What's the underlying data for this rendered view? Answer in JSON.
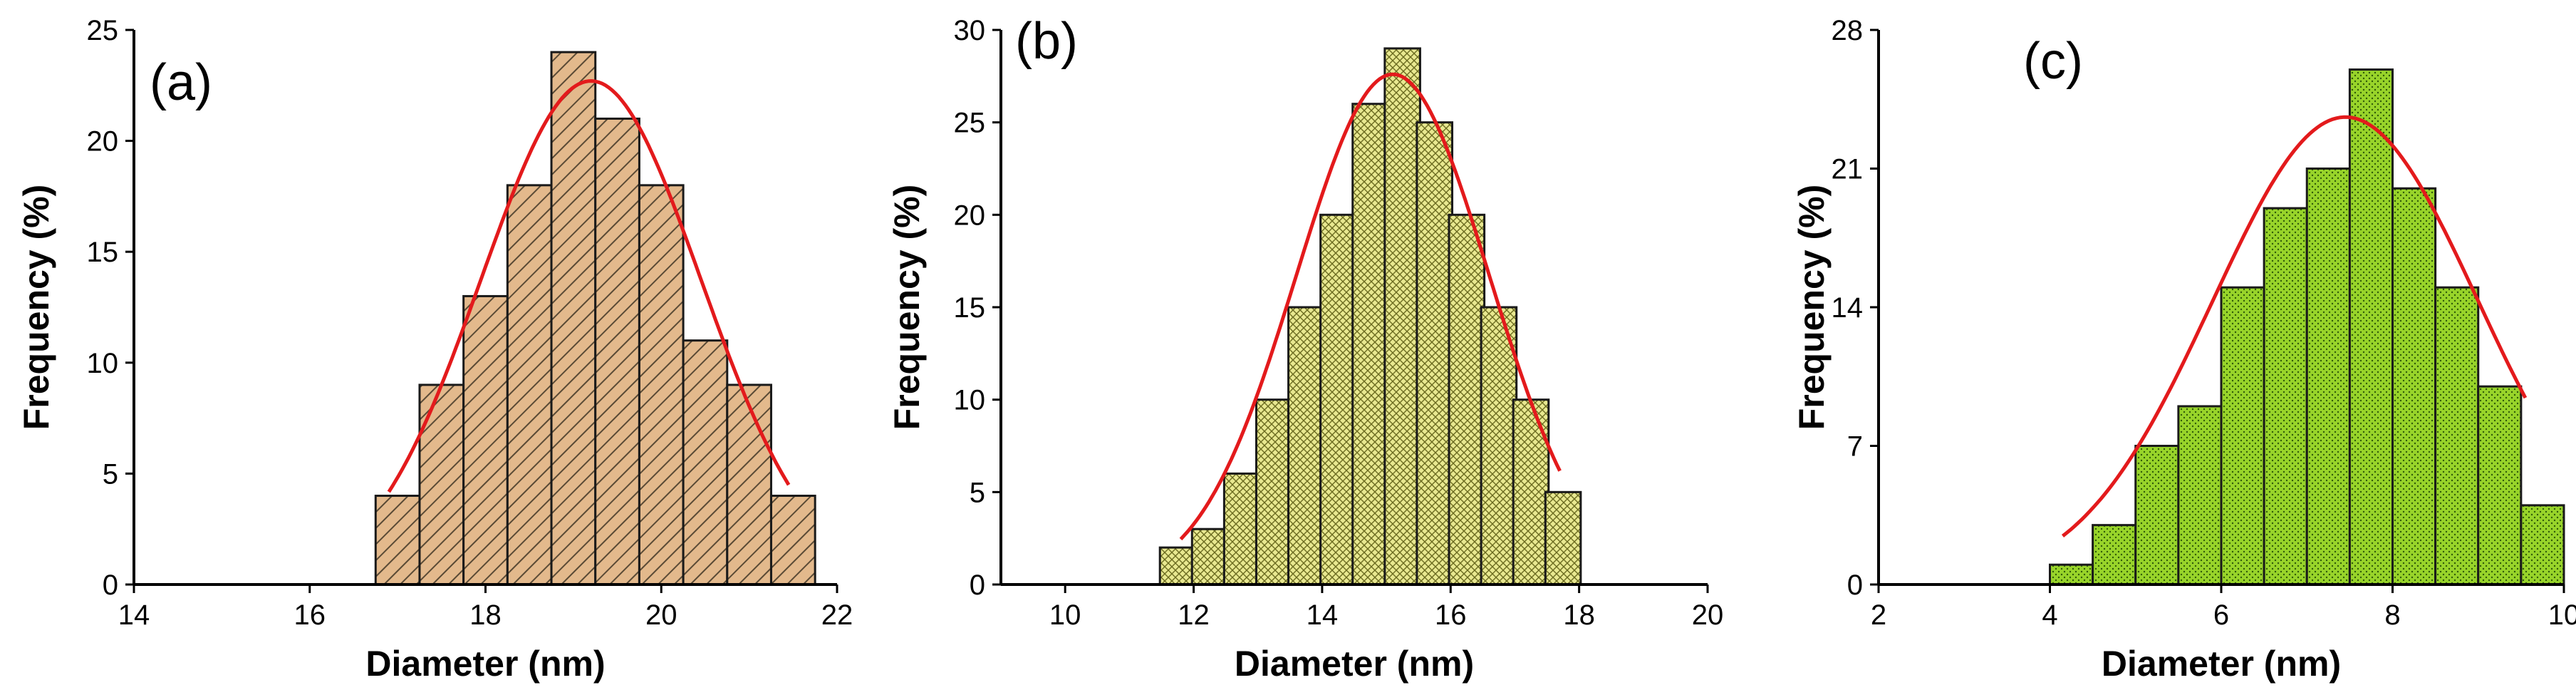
{
  "chart_data": [
    {
      "type": "bar",
      "panel_label": "(a)",
      "xlabel": "Diameter (nm)",
      "ylabel": "Frequency (%)",
      "xlim": [
        14,
        22
      ],
      "ylim": [
        0,
        25
      ],
      "xticks": [
        14,
        16,
        18,
        20,
        22
      ],
      "yticks": [
        0,
        5,
        10,
        15,
        20,
        25
      ],
      "bin_width": 0.5,
      "x": [
        17.0,
        17.5,
        18.0,
        18.5,
        19.0,
        19.5,
        20.0,
        20.5,
        21.0,
        21.5
      ],
      "values": [
        4,
        9,
        13,
        18,
        24,
        21,
        18,
        11,
        9,
        4
      ],
      "fit": {
        "type": "gaussian",
        "mean": 19.2,
        "sigma": 1.25,
        "peak": 22.7,
        "x_range": [
          16.9,
          21.45
        ]
      },
      "colors": {
        "bar": "#e3b98c",
        "hatch": "#5a4a35",
        "fit": "#e31a1c"
      },
      "pattern": "diagonal"
    },
    {
      "type": "bar",
      "panel_label": "(b)",
      "xlabel": "Diameter (nm)",
      "ylabel": "Frequency (%)",
      "xlim": [
        9,
        20
      ],
      "ylim": [
        0,
        30
      ],
      "xticks": [
        10,
        12,
        14,
        16,
        18,
        20
      ],
      "yticks": [
        0,
        5,
        10,
        15,
        20,
        25,
        30
      ],
      "bin_width": 0.55,
      "x": [
        11.75,
        12.25,
        12.75,
        13.25,
        13.75,
        14.25,
        14.75,
        15.25,
        15.75,
        16.25,
        16.75,
        17.25,
        17.75
      ],
      "values": [
        2,
        3,
        6,
        10,
        15,
        20,
        26,
        29,
        25,
        20,
        15,
        10,
        5
      ],
      "fit": {
        "type": "gaussian",
        "mean": 15.1,
        "sigma": 1.5,
        "peak": 27.6,
        "x_range": [
          11.8,
          17.7
        ]
      },
      "colors": {
        "bar": "#e8e890",
        "hatch": "#6b6b20",
        "fit": "#e31a1c"
      },
      "pattern": "crosshatch"
    },
    {
      "type": "bar",
      "panel_label": "(c)",
      "xlabel": "Diameter (nm)",
      "ylabel": "Frequency (%)",
      "xlim": [
        2,
        10
      ],
      "ylim": [
        0,
        28
      ],
      "xticks": [
        2,
        4,
        6,
        8,
        10
      ],
      "yticks": [
        0,
        7,
        14,
        21,
        28
      ],
      "bin_width": 0.5,
      "x": [
        4.25,
        4.75,
        5.25,
        5.75,
        6.25,
        6.75,
        7.25,
        7.75,
        8.25,
        8.75,
        9.25,
        9.75
      ],
      "values": [
        1,
        3,
        7,
        9,
        15,
        19,
        21,
        26,
        20,
        15,
        10,
        4
      ],
      "fit": {
        "type": "gaussian",
        "mean": 7.45,
        "sigma": 1.55,
        "peak": 23.6,
        "x_range": [
          4.15,
          9.55
        ]
      },
      "colors": {
        "bar": "#98d42a",
        "hatch": "#2f5a08",
        "fit": "#e31a1c"
      },
      "pattern": "dots"
    }
  ]
}
